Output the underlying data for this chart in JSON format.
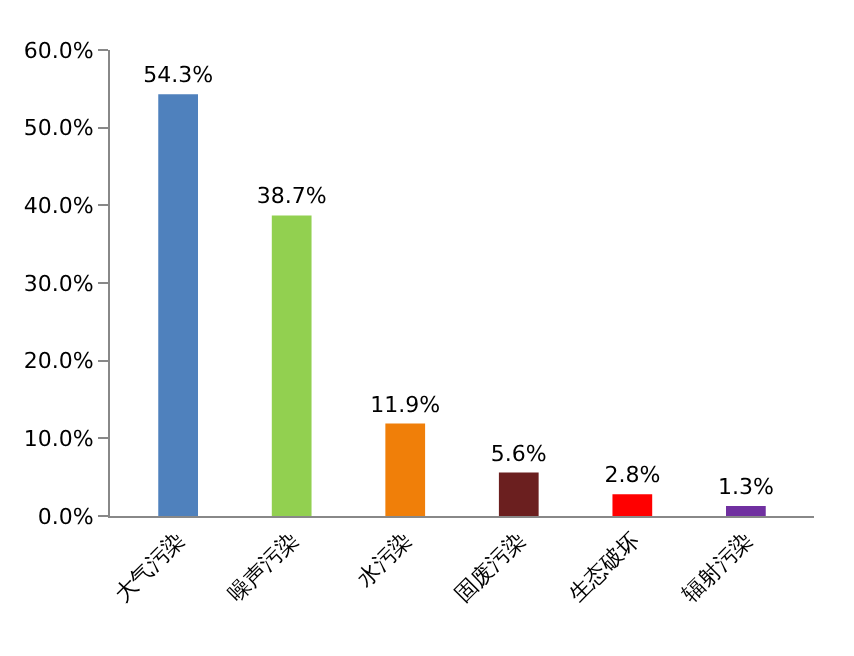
{
  "chart_data": {
    "type": "bar",
    "categories": [
      "大气污染",
      "噪声污染",
      "水污染",
      "固废污染",
      "生态破坏",
      "辐射污染"
    ],
    "values": [
      54.3,
      38.7,
      11.9,
      5.6,
      2.8,
      1.3
    ],
    "value_labels": [
      "54.3%",
      "38.7%",
      "11.9%",
      "5.6%",
      "2.8%",
      "1.3%"
    ],
    "colors": [
      "#4f81bd",
      "#92d050",
      "#f07f09",
      "#6b1f1f",
      "#ff0000",
      "#7030a0"
    ],
    "ylim": [
      0,
      60
    ],
    "yticks": [
      {
        "value": 0,
        "label": "0.0%"
      },
      {
        "value": 10,
        "label": "10.0%"
      },
      {
        "value": 20,
        "label": "20.0%"
      },
      {
        "value": 30,
        "label": "30.0%"
      },
      {
        "value": 40,
        "label": "40.0%"
      },
      {
        "value": 50,
        "label": "50.0%"
      },
      {
        "value": 60,
        "label": "60.0%"
      }
    ]
  }
}
